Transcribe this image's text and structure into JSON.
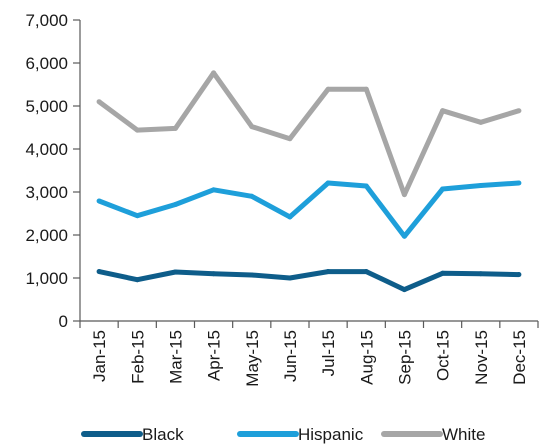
{
  "chart_data": {
    "type": "line",
    "title": "",
    "xlabel": "",
    "ylabel": "",
    "categories": [
      "Jan-15",
      "Feb-15",
      "Mar-15",
      "Apr-15",
      "May-15",
      "Jun-15",
      "Jul-15",
      "Aug-15",
      "Sep-15",
      "Oct-15",
      "Nov-15",
      "Dec-15"
    ],
    "ylim": [
      0,
      7000
    ],
    "yticks": [
      0,
      1000,
      2000,
      3000,
      4000,
      5000,
      6000,
      7000
    ],
    "ytick_labels": [
      "0",
      "1,000",
      "2,000",
      "3,000",
      "4,000",
      "5,000",
      "6,000",
      "7,000"
    ],
    "grid": false,
    "legend_position": "bottom",
    "series": [
      {
        "name": "Black",
        "color": "#0e5d8a",
        "values": [
          1150,
          960,
          1140,
          1100,
          1070,
          1000,
          1150,
          1150,
          730,
          1110,
          1100,
          1080
        ]
      },
      {
        "name": "Hispanic",
        "color": "#1e9fda",
        "values": [
          2790,
          2450,
          2710,
          3050,
          2900,
          2420,
          3210,
          3140,
          1970,
          3070,
          3150,
          3210
        ]
      },
      {
        "name": "White",
        "color": "#a6a6a6",
        "values": [
          5100,
          4440,
          4480,
          5770,
          4520,
          4240,
          5390,
          5390,
          2940,
          4890,
          4620,
          4890
        ]
      }
    ]
  }
}
